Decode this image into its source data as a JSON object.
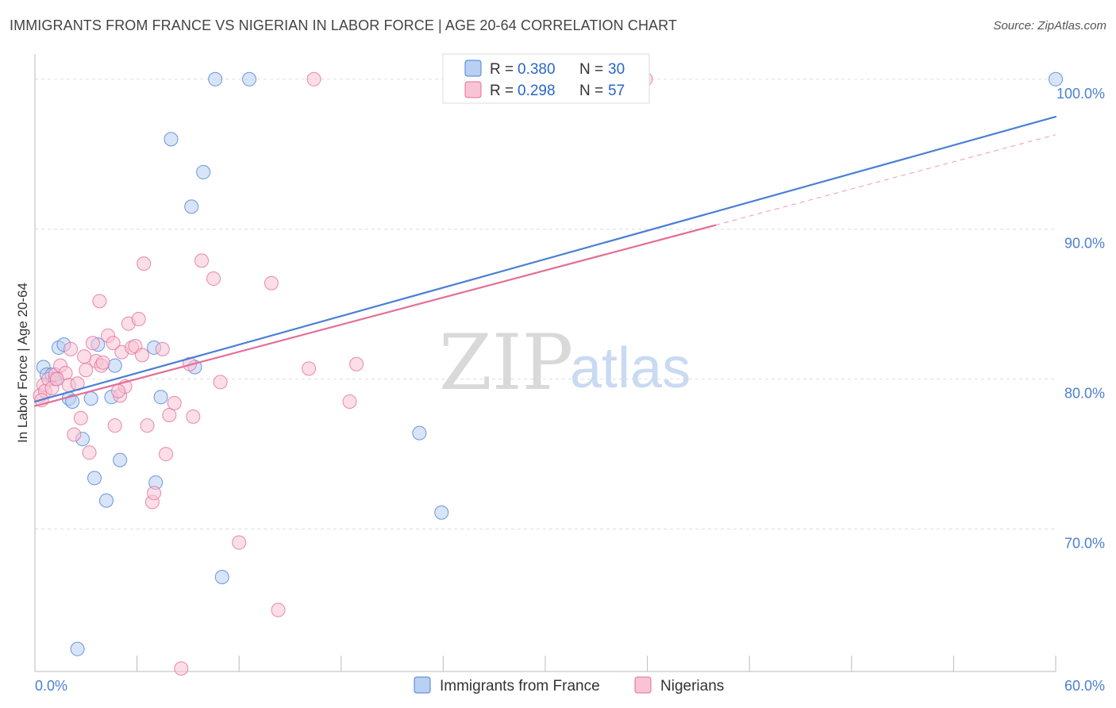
{
  "header": {
    "title": "IMMIGRANTS FROM FRANCE VS NIGERIAN IN LABOR FORCE | AGE 20-64 CORRELATION CHART",
    "source": "Source: ZipAtlas.com"
  },
  "colors": {
    "blue": "#4a7fd4",
    "blue_fill": "#b8d0f3",
    "pink": "#e46e98",
    "pink_fill": "#f8c3d4",
    "grid": "#dddddd"
  },
  "watermark": {
    "zip": "ZIP",
    "atlas": "atlas"
  },
  "legend": {
    "rows": [
      {
        "r_label": "R =",
        "r_value": "0.380",
        "n_label": "N =",
        "n_value": "30"
      },
      {
        "r_label": "R =",
        "r_value": "0.298",
        "n_label": "N =",
        "n_value": "57"
      }
    ]
  },
  "chart_data": {
    "type": "scatter",
    "title": "IMMIGRANTS FROM FRANCE VS NIGERIAN IN LABOR FORCE | AGE 20-64 CORRELATION CHART",
    "xlabel": "",
    "ylabel": "In Labor Force | Age 20-64",
    "xlim": [
      0,
      60
    ],
    "ylim": [
      60.5,
      102
    ],
    "x_tick_labels": [
      "0.0%",
      "60.0%"
    ],
    "y_ticks": [
      70,
      80,
      90,
      100
    ],
    "y_tick_labels": [
      "70.0%",
      "80.0%",
      "90.0%",
      "100.0%"
    ],
    "legend_position": "top-center",
    "series": [
      {
        "name": "Immigrants from France",
        "r": 0.38,
        "n": 30,
        "trend": {
          "x": [
            0,
            60
          ],
          "y": [
            78.5,
            97.5
          ],
          "solid_until": 60
        },
        "points": [
          [
            0.5,
            80.8
          ],
          [
            0.7,
            80.3
          ],
          [
            1.0,
            80.3
          ],
          [
            1.2,
            80.0
          ],
          [
            1.4,
            82.1
          ],
          [
            1.7,
            82.3
          ],
          [
            2.0,
            78.7
          ],
          [
            2.2,
            78.5
          ],
          [
            2.8,
            76.0
          ],
          [
            3.3,
            78.7
          ],
          [
            3.5,
            73.4
          ],
          [
            3.7,
            82.3
          ],
          [
            4.2,
            71.9
          ],
          [
            4.5,
            78.8
          ],
          [
            4.7,
            80.9
          ],
          [
            5.0,
            74.6
          ],
          [
            7.0,
            82.1
          ],
          [
            7.1,
            73.1
          ],
          [
            7.4,
            78.8
          ],
          [
            8.0,
            96.0
          ],
          [
            9.2,
            91.5
          ],
          [
            9.4,
            80.8
          ],
          [
            9.9,
            93.8
          ],
          [
            10.6,
            100.0
          ],
          [
            11.0,
            66.8
          ],
          [
            12.6,
            100.0
          ],
          [
            2.5,
            62.0
          ],
          [
            22.6,
            76.4
          ],
          [
            23.9,
            71.1
          ],
          [
            60.0,
            100.0
          ]
        ]
      },
      {
        "name": "Nigerians",
        "r": 0.298,
        "n": 57,
        "trend": {
          "x": [
            0,
            60
          ],
          "y": [
            78.2,
            96.3
          ],
          "solid_until": 40
        },
        "points": [
          [
            0.3,
            78.9
          ],
          [
            0.5,
            79.6
          ],
          [
            0.6,
            79.2
          ],
          [
            0.8,
            80.0
          ],
          [
            1.0,
            79.4
          ],
          [
            1.2,
            80.3
          ],
          [
            1.5,
            80.9
          ],
          [
            1.8,
            80.4
          ],
          [
            2.0,
            79.6
          ],
          [
            2.1,
            82.0
          ],
          [
            2.3,
            76.3
          ],
          [
            2.5,
            79.7
          ],
          [
            2.7,
            77.4
          ],
          [
            3.0,
            80.6
          ],
          [
            3.2,
            75.1
          ],
          [
            3.4,
            82.4
          ],
          [
            3.6,
            81.2
          ],
          [
            3.8,
            85.2
          ],
          [
            3.9,
            80.9
          ],
          [
            4.0,
            81.1
          ],
          [
            4.3,
            82.9
          ],
          [
            4.6,
            82.4
          ],
          [
            4.7,
            76.9
          ],
          [
            5.0,
            78.9
          ],
          [
            5.1,
            81.8
          ],
          [
            5.3,
            79.5
          ],
          [
            5.5,
            83.7
          ],
          [
            5.7,
            82.1
          ],
          [
            5.9,
            82.2
          ],
          [
            6.1,
            84.0
          ],
          [
            6.3,
            81.6
          ],
          [
            6.4,
            87.7
          ],
          [
            6.6,
            76.9
          ],
          [
            6.9,
            71.8
          ],
          [
            7.0,
            72.4
          ],
          [
            7.5,
            82.0
          ],
          [
            7.7,
            75.0
          ],
          [
            7.9,
            77.6
          ],
          [
            8.2,
            78.4
          ],
          [
            8.6,
            60.7
          ],
          [
            9.1,
            81.0
          ],
          [
            9.3,
            77.5
          ],
          [
            9.8,
            87.9
          ],
          [
            10.5,
            86.7
          ],
          [
            10.9,
            79.8
          ],
          [
            12.0,
            69.1
          ],
          [
            13.9,
            86.4
          ],
          [
            14.3,
            64.6
          ],
          [
            16.1,
            80.7
          ],
          [
            16.4,
            100.0
          ],
          [
            18.5,
            78.5
          ],
          [
            18.9,
            81.0
          ],
          [
            35.9,
            100.0
          ],
          [
            1.3,
            80.0
          ],
          [
            2.9,
            81.5
          ],
          [
            4.9,
            79.2
          ],
          [
            0.4,
            78.6
          ]
        ]
      }
    ]
  }
}
